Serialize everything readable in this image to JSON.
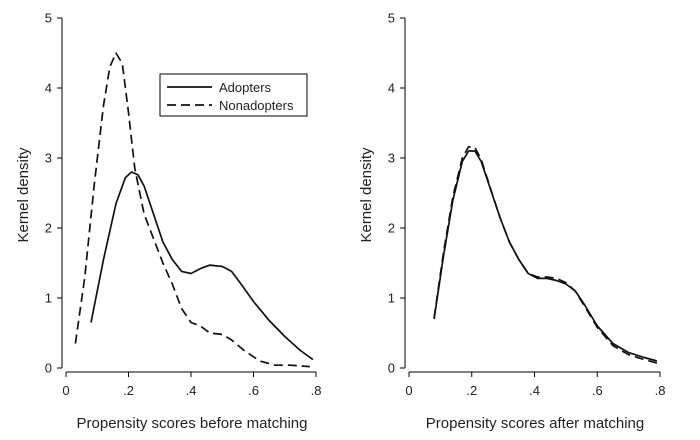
{
  "chart_data": [
    {
      "type": "line",
      "xlabel": "Propensity scores before matching",
      "ylabel": "Kernel density",
      "xlim": [
        0,
        0.8
      ],
      "ylim": [
        0,
        5
      ],
      "xticks": [
        "0",
        ".2",
        ".4",
        ".6",
        ".8"
      ],
      "xtick_values": [
        0,
        0.2,
        0.4,
        0.6,
        0.8
      ],
      "yticks": [
        "0",
        "1",
        "2",
        "3",
        "4",
        "5"
      ],
      "ytick_values": [
        0,
        1,
        2,
        3,
        4,
        5
      ],
      "grid": false,
      "legend": "top-right",
      "series": [
        {
          "name": "Adopters",
          "style": "solid",
          "x": [
            0.08,
            0.12,
            0.16,
            0.19,
            0.21,
            0.23,
            0.25,
            0.28,
            0.31,
            0.34,
            0.37,
            0.4,
            0.43,
            0.46,
            0.5,
            0.53,
            0.56,
            0.6,
            0.65,
            0.7,
            0.75,
            0.79
          ],
          "y": [
            0.65,
            1.55,
            2.35,
            2.72,
            2.8,
            2.76,
            2.6,
            2.2,
            1.8,
            1.55,
            1.38,
            1.35,
            1.42,
            1.47,
            1.45,
            1.38,
            1.2,
            0.95,
            0.68,
            0.45,
            0.25,
            0.12
          ]
        },
        {
          "name": "Nonadopters",
          "style": "dashed",
          "x": [
            0.03,
            0.06,
            0.09,
            0.12,
            0.14,
            0.16,
            0.18,
            0.2,
            0.22,
            0.25,
            0.28,
            0.31,
            0.34,
            0.37,
            0.4,
            0.43,
            0.46,
            0.5,
            0.53,
            0.57,
            0.62,
            0.67,
            0.72,
            0.78
          ],
          "y": [
            0.35,
            1.3,
            2.6,
            3.75,
            4.3,
            4.5,
            4.35,
            3.65,
            2.85,
            2.2,
            1.85,
            1.5,
            1.2,
            0.85,
            0.65,
            0.6,
            0.5,
            0.48,
            0.4,
            0.25,
            0.1,
            0.04,
            0.04,
            0.02
          ]
        }
      ]
    },
    {
      "type": "line",
      "xlabel": "Propensity scores after matching",
      "ylabel": "Kernel density",
      "xlim": [
        0,
        0.8
      ],
      "ylim": [
        0,
        5
      ],
      "xticks": [
        "0",
        ".2",
        ".4",
        ".6",
        ".8"
      ],
      "xtick_values": [
        0,
        0.2,
        0.4,
        0.6,
        0.8
      ],
      "yticks": [
        "0",
        "1",
        "2",
        "3",
        "4",
        "5"
      ],
      "ytick_values": [
        0,
        1,
        2,
        3,
        4,
        5
      ],
      "grid": false,
      "legend": "none",
      "series": [
        {
          "name": "Adopters",
          "style": "solid",
          "x": [
            0.08,
            0.11,
            0.14,
            0.17,
            0.19,
            0.21,
            0.23,
            0.26,
            0.29,
            0.32,
            0.35,
            0.38,
            0.41,
            0.44,
            0.47,
            0.5,
            0.53,
            0.56,
            0.6,
            0.65,
            0.7,
            0.75,
            0.79
          ],
          "y": [
            0.7,
            1.6,
            2.4,
            2.95,
            3.1,
            3.1,
            2.95,
            2.55,
            2.15,
            1.8,
            1.55,
            1.35,
            1.28,
            1.28,
            1.25,
            1.2,
            1.1,
            0.9,
            0.6,
            0.35,
            0.22,
            0.15,
            0.1
          ]
        },
        {
          "name": "Nonadopters",
          "style": "dashed",
          "x": [
            0.08,
            0.11,
            0.14,
            0.17,
            0.19,
            0.21,
            0.23,
            0.26,
            0.29,
            0.32,
            0.35,
            0.38,
            0.41,
            0.44,
            0.47,
            0.5,
            0.53,
            0.56,
            0.6,
            0.65,
            0.7,
            0.75,
            0.79
          ],
          "y": [
            0.72,
            1.65,
            2.45,
            3.0,
            3.16,
            3.15,
            2.98,
            2.56,
            2.15,
            1.8,
            1.55,
            1.35,
            1.3,
            1.3,
            1.28,
            1.22,
            1.1,
            0.88,
            0.58,
            0.32,
            0.19,
            0.12,
            0.07
          ]
        }
      ]
    }
  ]
}
